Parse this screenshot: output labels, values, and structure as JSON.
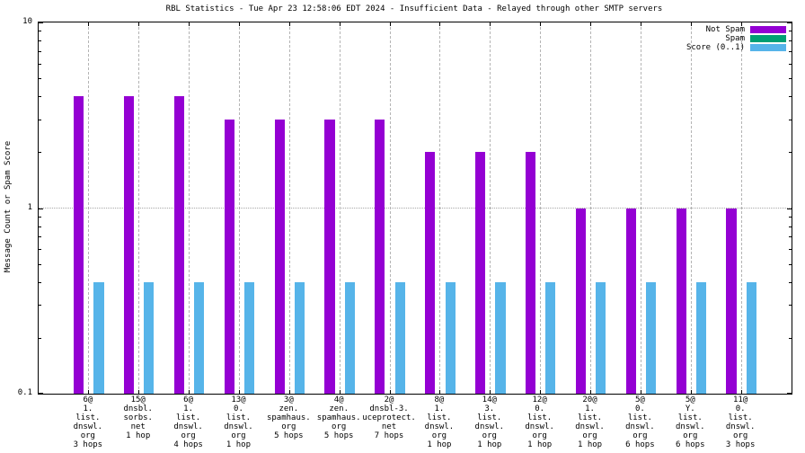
{
  "title": "RBL Statistics - Tue Apr 23 12:58:06 EDT 2024 - Insufficient Data - Relayed through other SMTP servers",
  "ylabel": "Message Count or Spam Score",
  "legend": {
    "position": "top-right",
    "items": [
      {
        "label": "Not Spam",
        "color": "#9400D3"
      },
      {
        "label": "Spam",
        "color": "#009E73"
      },
      {
        "label": "Score (0..1)",
        "color": "#56B4E9"
      }
    ]
  },
  "chart_data": {
    "type": "bar",
    "title": "RBL Statistics - Tue Apr 23 12:58:06 EDT 2024 - Insufficient Data - Relayed through other SMTP servers",
    "xlabel": "",
    "ylabel": "Message Count or Spam Score",
    "yscale": "log",
    "ylim": [
      0.1,
      10
    ],
    "grid": true,
    "legend_position": "top-right",
    "yticks": [
      {
        "value": 10,
        "label": "10"
      },
      {
        "value": 1,
        "label": "1"
      },
      {
        "value": 0.1,
        "label": "0.1"
      }
    ],
    "categories": [
      [
        "6@",
        "1.",
        "list.",
        "dnswl.",
        "org",
        "3 hops"
      ],
      [
        "15@",
        "dnsbl.",
        "sorbs.",
        "net",
        "1 hop"
      ],
      [
        "6@",
        "1.",
        "list.",
        "dnswl.",
        "org",
        "4 hops"
      ],
      [
        "13@",
        "0.",
        "list.",
        "dnswl.",
        "org",
        "1 hop"
      ],
      [
        "3@",
        "zen.",
        "spamhaus.",
        "org",
        "5 hops"
      ],
      [
        "4@",
        "zen.",
        "spamhaus.",
        "org",
        "5 hops"
      ],
      [
        "2@",
        "dnsbl-3.",
        "uceprotect.",
        "net",
        "7 hops"
      ],
      [
        "8@",
        "1.",
        "list.",
        "dnswl.",
        "org",
        "1 hop"
      ],
      [
        "14@",
        "3.",
        "list.",
        "dnswl.",
        "org",
        "1 hop"
      ],
      [
        "12@",
        "0.",
        "list.",
        "dnswl.",
        "org",
        "1 hop"
      ],
      [
        "20@",
        "1.",
        "list.",
        "dnswl.",
        "org",
        "1 hop"
      ],
      [
        "5@",
        "0.",
        "list.",
        "dnswl.",
        "org",
        "6 hops"
      ],
      [
        "5@",
        "Y.",
        "list.",
        "dnswl.",
        "org",
        "6 hops"
      ],
      [
        "11@",
        "0.",
        "list.",
        "dnswl.",
        "org",
        "3 hops"
      ]
    ],
    "series": [
      {
        "name": "Not Spam",
        "color": "#9400D3",
        "values": [
          4,
          4,
          4,
          3,
          3,
          3,
          3,
          2,
          2,
          2,
          1,
          1,
          1,
          1
        ]
      },
      {
        "name": "Spam",
        "color": "#009E73",
        "values": [
          0,
          0,
          0,
          0,
          0,
          0,
          0,
          0,
          0,
          0,
          0,
          0,
          0,
          0
        ]
      },
      {
        "name": "Score (0..1)",
        "color": "#56B4E9",
        "values": [
          0.4,
          0.4,
          0.4,
          0.4,
          0.4,
          0.4,
          0.4,
          0.4,
          0.4,
          0.4,
          0.4,
          0.4,
          0.4,
          0.4
        ]
      }
    ]
  }
}
